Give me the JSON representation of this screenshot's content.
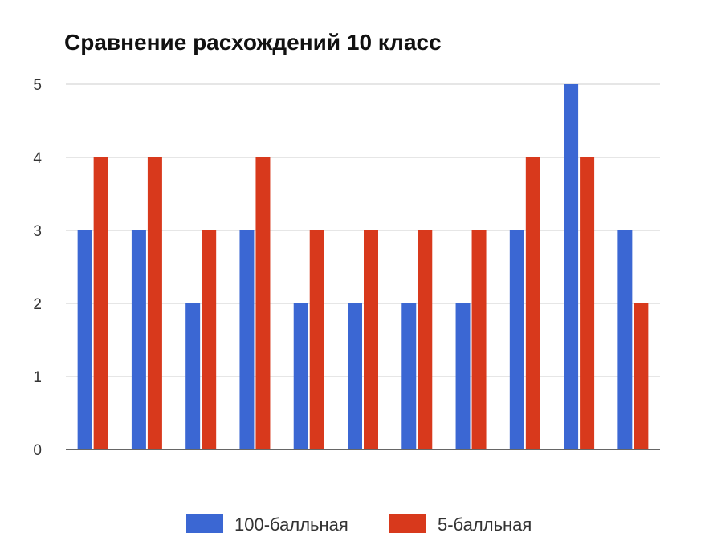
{
  "chart_data": {
    "type": "bar",
    "title": "Сравнение расхождений 10 класс",
    "xlabel": "",
    "ylabel": "",
    "ylim": [
      0,
      5
    ],
    "yticks": [
      "0",
      "1",
      "2",
      "3",
      "4",
      "5"
    ],
    "grid": true,
    "legend_position": "bottom",
    "categories": [
      "",
      "",
      "",
      "",
      "",
      "",
      "",
      "",
      "",
      "",
      ""
    ],
    "series": [
      {
        "name": "100-балльная",
        "color": "#3b67d3",
        "values": [
          3,
          3,
          2,
          3,
          2,
          2,
          2,
          2,
          3,
          5,
          3
        ]
      },
      {
        "name": "5-балльная",
        "color": "#d8391c",
        "values": [
          4,
          4,
          3,
          4,
          3,
          3,
          3,
          3,
          4,
          4,
          2
        ]
      }
    ]
  }
}
